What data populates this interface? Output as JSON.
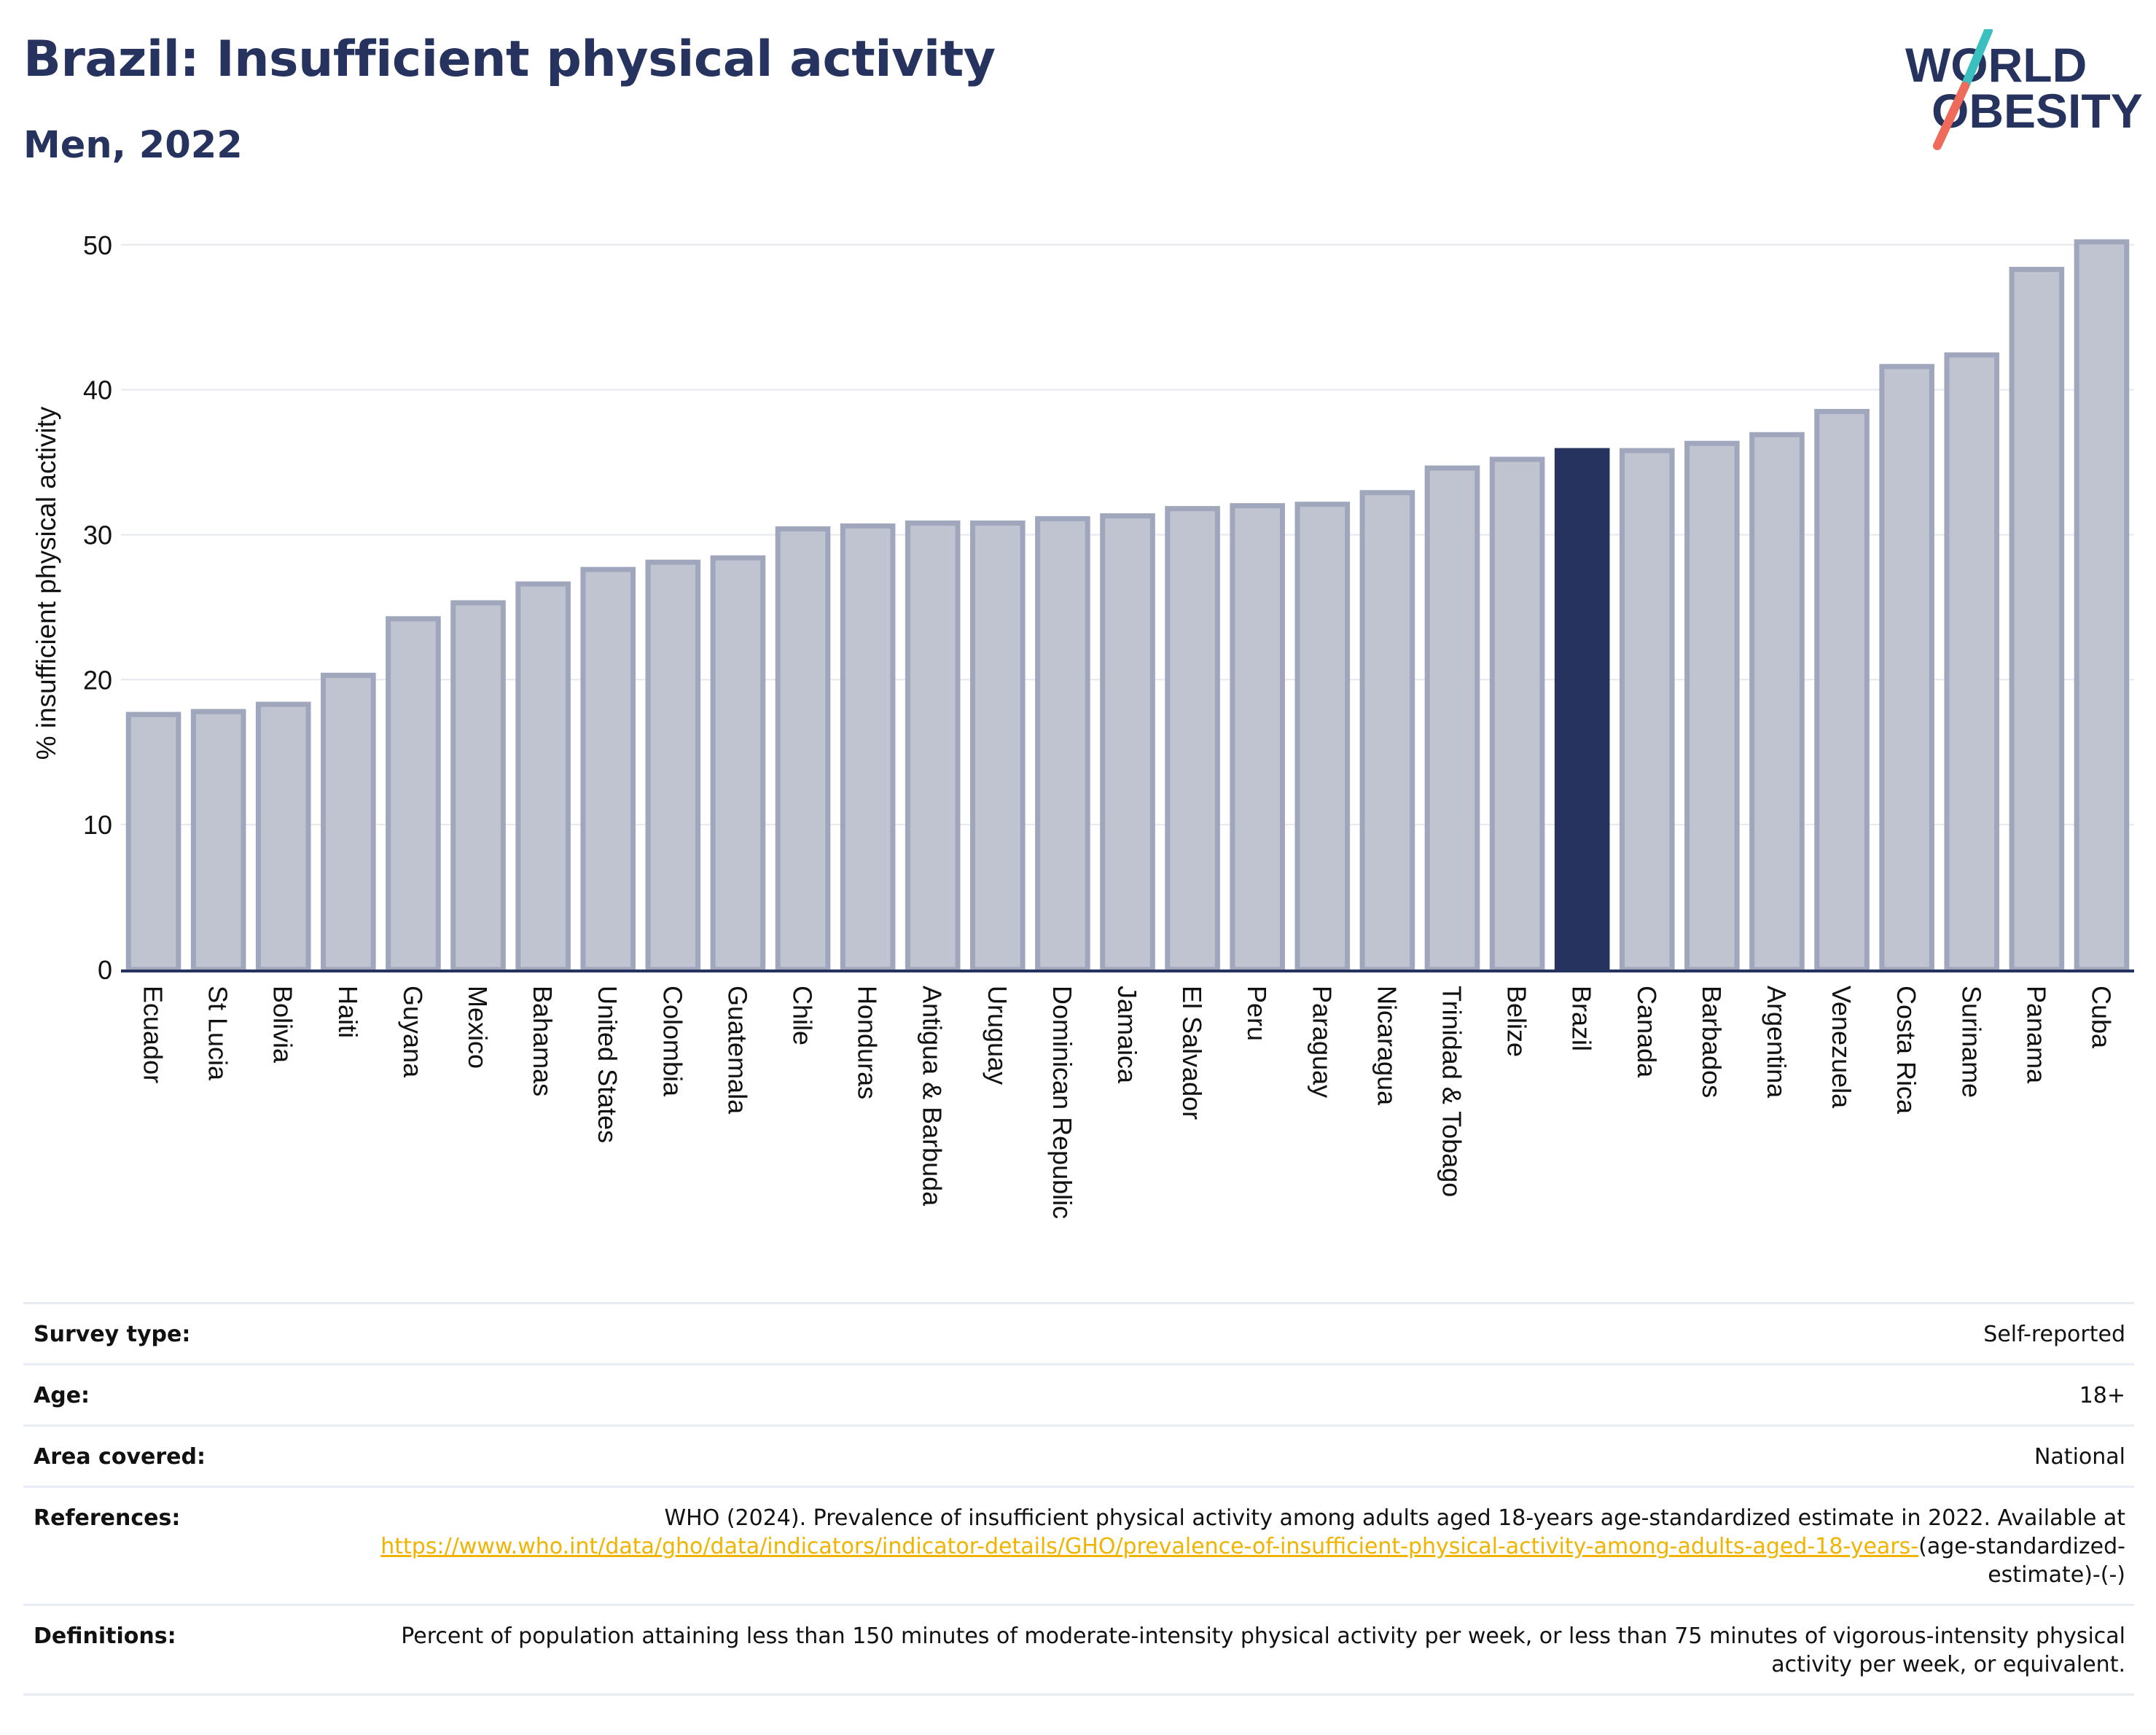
{
  "header": {
    "title": "Brazil: Insufficient physical activity",
    "subtitle": "Men, 2022"
  },
  "logo": {
    "line1": "WORLD",
    "line2": "OBESITY",
    "colors": {
      "text": "#27335f",
      "slash_top": "#3bbfbf",
      "slash_bottom": "#ee6a5a"
    }
  },
  "colors": {
    "highlight": "#27335f",
    "bar_fill": "#c0c3d0",
    "bar_stroke": "#a0a6bc",
    "axis": "#27335f",
    "grid": "#e6e8ef",
    "link": "#f0b400"
  },
  "chart_data": {
    "type": "bar",
    "title": "Brazil: Insufficient physical activity",
    "subtitle": "Men, 2022",
    "xlabel": "",
    "ylabel": "% insufficient physical activity",
    "ylim": [
      0,
      52
    ],
    "yticks": [
      0,
      10,
      20,
      30,
      40,
      50
    ],
    "highlight": "Brazil",
    "grid": true,
    "categories": [
      "Ecuador",
      "St Lucia",
      "Bolivia",
      "Haiti",
      "Guyana",
      "Mexico",
      "Bahamas",
      "United States",
      "Colombia",
      "Guatemala",
      "Chile",
      "Honduras",
      "Antigua & Barbuda",
      "Uruguay",
      "Dominican Republic",
      "Jamaica",
      "El Salvador",
      "Peru",
      "Paraguay",
      "Nicaragua",
      "Trinidad & Tobago",
      "Belize",
      "Brazil",
      "Canada",
      "Barbados",
      "Argentina",
      "Venezuela",
      "Costa Rica",
      "Suriname",
      "Panama",
      "Cuba"
    ],
    "values": [
      17.6,
      17.8,
      18.3,
      20.3,
      24.2,
      25.3,
      26.6,
      27.6,
      28.1,
      28.4,
      30.4,
      30.6,
      30.8,
      30.8,
      31.1,
      31.3,
      31.8,
      32.0,
      32.1,
      32.9,
      34.6,
      35.2,
      35.8,
      35.8,
      36.3,
      36.9,
      38.5,
      41.6,
      42.4,
      48.3,
      50.2
    ]
  },
  "details": [
    {
      "label": "Survey type:",
      "value": "Self-reported"
    },
    {
      "label": "Age:",
      "value": "18+"
    },
    {
      "label": "Area covered:",
      "value": "National"
    },
    {
      "label": "References:",
      "value": "WHO (2024). Prevalence of insufficient physical activity among adults aged 18-years age-standardized estimate in 2022. Available at",
      "link": "https://www.who.int/data/gho/data/indicators/indicator-details/GHO/prevalence-of-insufficient-physical-activity-among-adults-aged-18-years-",
      "suffix": "(age-standardized-estimate)-(-)"
    },
    {
      "label": "Definitions:",
      "value": "Percent of population attaining less than 150 minutes of moderate-intensity physical activity per week, or less than 75 minutes of vigorous-intensity physical activity per week, or equivalent."
    }
  ]
}
